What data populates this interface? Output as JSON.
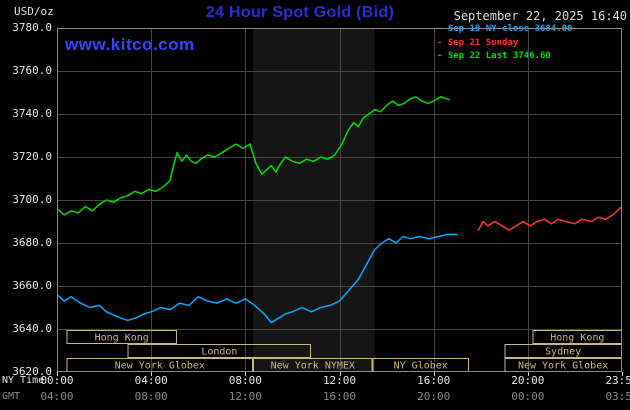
{
  "header": {
    "units": "USD/oz",
    "title": "24 Hour Spot Gold (Bid)",
    "datetime": "September 22, 2025 16:40",
    "watermark": "www.kitco.com"
  },
  "legend": {
    "items": [
      {
        "marker": "-",
        "label": "Sep 19 NY close 3684.00",
        "color": "#00aaff"
      },
      {
        "marker": "-",
        "label": "Sep 21 Sunday",
        "color": "#ff3333"
      },
      {
        "marker": "-",
        "label": "Sep 22 Last 3746.60",
        "color": "#00dd00"
      }
    ]
  },
  "axes": {
    "y_ticks": [
      "3780.0",
      "3760.0",
      "3740.0",
      "3720.0",
      "3700.0",
      "3680.0",
      "3660.0",
      "3640.0",
      "3620.0"
    ],
    "x_primary_label": "NY Time",
    "x_primary_ticks": [
      "00:00",
      "04:00",
      "08:00",
      "12:00",
      "16:00",
      "20:00",
      "23:59"
    ],
    "x_secondary_label": "GMT",
    "x_secondary_ticks": [
      "04:00",
      "08:00",
      "12:00",
      "16:00",
      "20:00",
      "00:00",
      "03:59"
    ]
  },
  "colors": {
    "background": "#000000",
    "title_blue": "#2b2bd8",
    "watermark_blue": "#3346ff",
    "grid": "#454545",
    "plot_border": "#8a8a8a",
    "axis_text": "#e6e6e6",
    "gmt_text": "#8a8a8a",
    "session_box": "#c9b877",
    "nymex_band": "#151515",
    "sep19": "#00aaff",
    "sep21": "#ff3333",
    "sep22": "#00dd00"
  },
  "chart_data": {
    "type": "line",
    "title": "24 Hour Spot Gold (Bid)",
    "ylabel": "USD/oz",
    "ylim": [
      3620,
      3780
    ],
    "y_step": 20,
    "x_hours": [
      0,
      24
    ],
    "x_tick_hours": [
      0,
      4,
      8,
      12,
      16,
      20,
      24
    ],
    "grid": true,
    "legend_position": "top-right",
    "bands": [
      {
        "name": "nymex-hours",
        "start": 8.33,
        "end": 13.5
      }
    ],
    "series": [
      {
        "id": "sep19",
        "name": "Sep 19 NY close",
        "close": 3684.0,
        "color_key": "sep19",
        "points": [
          [
            0,
            3656
          ],
          [
            0.3,
            3653
          ],
          [
            0.6,
            3655
          ],
          [
            1,
            3652
          ],
          [
            1.4,
            3650
          ],
          [
            1.8,
            3651
          ],
          [
            2.1,
            3648
          ],
          [
            2.5,
            3646
          ],
          [
            3,
            3644
          ],
          [
            3.3,
            3645
          ],
          [
            3.7,
            3647
          ],
          [
            4,
            3648
          ],
          [
            4.4,
            3650
          ],
          [
            4.8,
            3649
          ],
          [
            5.2,
            3652
          ],
          [
            5.6,
            3651
          ],
          [
            6,
            3655
          ],
          [
            6.4,
            3653
          ],
          [
            6.8,
            3652
          ],
          [
            7.2,
            3654
          ],
          [
            7.6,
            3652
          ],
          [
            8,
            3654
          ],
          [
            8.4,
            3651
          ],
          [
            8.8,
            3647
          ],
          [
            9.1,
            3643
          ],
          [
            9.4,
            3645
          ],
          [
            9.7,
            3647
          ],
          [
            10,
            3648
          ],
          [
            10.4,
            3650
          ],
          [
            10.8,
            3648
          ],
          [
            11.2,
            3650
          ],
          [
            11.6,
            3651
          ],
          [
            12,
            3653
          ],
          [
            12.4,
            3658
          ],
          [
            12.8,
            3663
          ],
          [
            13.2,
            3671
          ],
          [
            13.5,
            3677
          ],
          [
            13.8,
            3680
          ],
          [
            14.1,
            3682
          ],
          [
            14.4,
            3680
          ],
          [
            14.7,
            3683
          ],
          [
            15,
            3682
          ],
          [
            15.4,
            3683
          ],
          [
            15.8,
            3682
          ],
          [
            16.2,
            3683
          ],
          [
            16.6,
            3684
          ],
          [
            17,
            3684
          ]
        ]
      },
      {
        "id": "sep21",
        "name": "Sep 21 Sunday",
        "color_key": "sep21",
        "points": [
          [
            17.9,
            3686
          ],
          [
            18.1,
            3690
          ],
          [
            18.3,
            3688
          ],
          [
            18.6,
            3690
          ],
          [
            18.9,
            3688
          ],
          [
            19.2,
            3686
          ],
          [
            19.5,
            3688
          ],
          [
            19.8,
            3690
          ],
          [
            20.1,
            3688
          ],
          [
            20.4,
            3690
          ],
          [
            20.7,
            3691
          ],
          [
            21,
            3689
          ],
          [
            21.3,
            3691
          ],
          [
            21.6,
            3690
          ],
          [
            22,
            3689
          ],
          [
            22.3,
            3691
          ],
          [
            22.7,
            3690
          ],
          [
            23,
            3692
          ],
          [
            23.3,
            3691
          ],
          [
            23.6,
            3693
          ],
          [
            23.8,
            3695
          ],
          [
            23.98,
            3697
          ]
        ]
      },
      {
        "id": "sep22",
        "name": "Sep 22 Last",
        "last": 3746.6,
        "color_key": "sep22",
        "points": [
          [
            0,
            3696
          ],
          [
            0.3,
            3693
          ],
          [
            0.6,
            3695
          ],
          [
            0.9,
            3694
          ],
          [
            1.2,
            3697
          ],
          [
            1.5,
            3695
          ],
          [
            1.8,
            3698
          ],
          [
            2.1,
            3700
          ],
          [
            2.4,
            3699
          ],
          [
            2.7,
            3701
          ],
          [
            3,
            3702
          ],
          [
            3.3,
            3704
          ],
          [
            3.6,
            3703
          ],
          [
            3.9,
            3705
          ],
          [
            4.2,
            3704
          ],
          [
            4.5,
            3706
          ],
          [
            4.8,
            3709
          ],
          [
            4.95,
            3716
          ],
          [
            5.1,
            3722
          ],
          [
            5.3,
            3718
          ],
          [
            5.5,
            3721
          ],
          [
            5.7,
            3718
          ],
          [
            5.9,
            3717
          ],
          [
            6.1,
            3719
          ],
          [
            6.4,
            3721
          ],
          [
            6.7,
            3720
          ],
          [
            7,
            3722
          ],
          [
            7.3,
            3724
          ],
          [
            7.6,
            3726
          ],
          [
            7.9,
            3724
          ],
          [
            8.2,
            3726
          ],
          [
            8.45,
            3717
          ],
          [
            8.7,
            3712
          ],
          [
            8.9,
            3714
          ],
          [
            9.1,
            3716
          ],
          [
            9.3,
            3713
          ],
          [
            9.5,
            3717
          ],
          [
            9.7,
            3720
          ],
          [
            10,
            3718
          ],
          [
            10.3,
            3717
          ],
          [
            10.6,
            3719
          ],
          [
            10.9,
            3718
          ],
          [
            11.2,
            3720
          ],
          [
            11.5,
            3719
          ],
          [
            11.8,
            3721
          ],
          [
            12.1,
            3726
          ],
          [
            12.35,
            3732
          ],
          [
            12.6,
            3736
          ],
          [
            12.8,
            3734
          ],
          [
            13,
            3738
          ],
          [
            13.25,
            3740
          ],
          [
            13.5,
            3742
          ],
          [
            13.75,
            3741
          ],
          [
            14,
            3744
          ],
          [
            14.25,
            3746
          ],
          [
            14.5,
            3744
          ],
          [
            14.75,
            3745
          ],
          [
            15,
            3747
          ],
          [
            15.25,
            3748
          ],
          [
            15.5,
            3746
          ],
          [
            15.75,
            3745
          ],
          [
            16,
            3746
          ],
          [
            16.3,
            3748
          ],
          [
            16.67,
            3746.6
          ]
        ]
      }
    ],
    "sessions": {
      "rows": [
        [
          {
            "label": "Hong Kong",
            "start": 0.4,
            "end": 5.1
          },
          {
            "label": "Hong Kong",
            "start": 20.2,
            "end": 24
          }
        ],
        [
          {
            "label": "London",
            "start": 3.0,
            "end": 10.8
          },
          {
            "label": "Sydney",
            "start": 19.0,
            "end": 24
          }
        ],
        [
          {
            "label": "New York Globex",
            "start": 0.4,
            "end": 8.33
          },
          {
            "label": "New York NYMEX",
            "start": 8.33,
            "end": 13.4
          },
          {
            "label": "NY Globex",
            "start": 13.4,
            "end": 17.5
          },
          {
            "label": "New York Globex",
            "start": 19.0,
            "end": 24
          }
        ]
      ]
    }
  }
}
